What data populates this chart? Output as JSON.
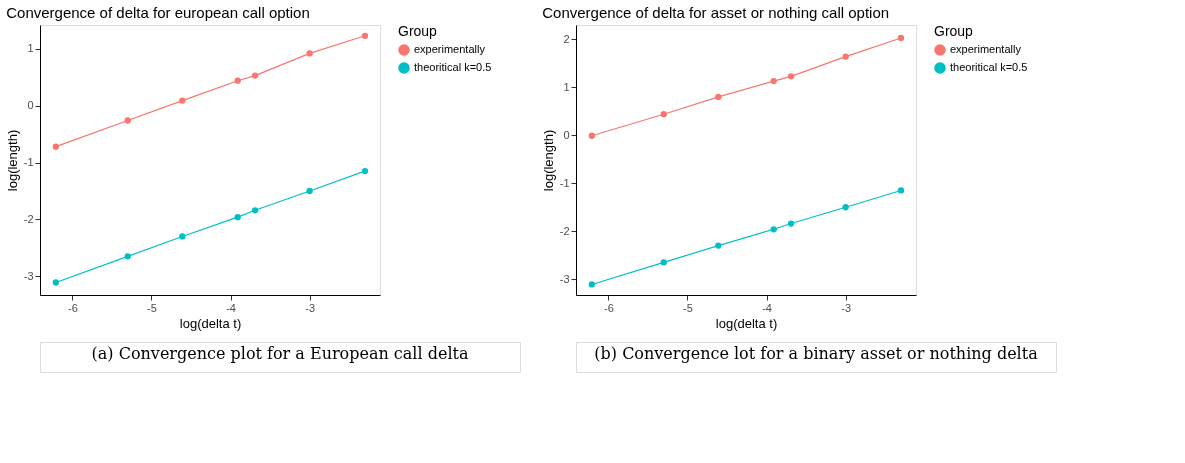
{
  "chart_data": [
    {
      "type": "line",
      "title": "Convergence of delta for european call option",
      "xlabel": "log(delta t)",
      "ylabel": "log(length)",
      "legend_title": "Group",
      "legend": "right",
      "grid": false,
      "marker": "circle",
      "line_style": "solid",
      "x": [
        -6.21,
        -5.3,
        -4.61,
        -3.91,
        -3.69,
        -3.0,
        -2.3
      ],
      "xlim": [
        -6.41,
        -2.11
      ],
      "xticks": [
        -6,
        -5,
        -4,
        -3
      ],
      "ylim": [
        -3.33,
        1.42
      ],
      "yticks": [
        -3,
        -2,
        -1,
        0,
        1
      ],
      "series": [
        {
          "name": "experimentally",
          "color": "#f8766d",
          "values": [
            -0.72,
            -0.26,
            0.09,
            0.44,
            0.53,
            0.92,
            1.23
          ]
        },
        {
          "name": "theoritical k=0.5",
          "color": "#00bfc4",
          "values": [
            -3.11,
            -2.65,
            -2.3,
            -1.96,
            -1.84,
            -1.5,
            -1.15
          ]
        }
      ],
      "annotations": [
        "(a) Convergence plot for a European call delta"
      ]
    },
    {
      "type": "line",
      "title": "Convergence of delta for asset or nothing call option",
      "xlabel": "log(delta t)",
      "ylabel": "log(length)",
      "legend_title": "Group",
      "legend": "right",
      "grid": false,
      "marker": "circle",
      "line_style": "solid",
      "x": [
        -6.21,
        -5.3,
        -4.61,
        -3.91,
        -3.69,
        -3.0,
        -2.3
      ],
      "xlim": [
        -6.41,
        -2.11
      ],
      "xticks": [
        -6,
        -5,
        -4,
        -3
      ],
      "ylim": [
        -3.33,
        2.3
      ],
      "yticks": [
        -3,
        -2,
        -1,
        0,
        1,
        2
      ],
      "series": [
        {
          "name": "experimentally",
          "color": "#f8766d",
          "values": [
            -0.01,
            0.44,
            0.8,
            1.13,
            1.23,
            1.64,
            2.03
          ]
        },
        {
          "name": "theoritical k=0.5",
          "color": "#00bfc4",
          "values": [
            -3.11,
            -2.65,
            -2.3,
            -1.96,
            -1.84,
            -1.5,
            -1.15
          ]
        }
      ],
      "annotations": [
        "(b) Convergence lot for a binary asset or nothing delta"
      ]
    }
  ]
}
